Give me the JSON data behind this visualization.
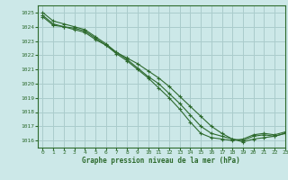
{
  "title": "",
  "xlabel": "Graphe pression niveau de la mer (hPa)",
  "ylabel": "",
  "background_color": "#cce8e8",
  "grid_color": "#aacccc",
  "line_color": "#2d6a2d",
  "xlim": [
    -0.5,
    23
  ],
  "ylim": [
    1015.5,
    1025.5
  ],
  "yticks": [
    1016,
    1017,
    1018,
    1019,
    1020,
    1021,
    1022,
    1023,
    1024,
    1025
  ],
  "xticks": [
    0,
    1,
    2,
    3,
    4,
    5,
    6,
    7,
    8,
    9,
    10,
    11,
    12,
    13,
    14,
    15,
    16,
    17,
    18,
    19,
    20,
    21,
    22,
    23
  ],
  "line1_x": [
    0,
    1,
    2,
    3,
    4,
    5,
    6,
    7,
    8,
    9,
    10,
    11,
    12,
    13,
    14,
    15,
    16,
    17,
    18,
    19,
    20,
    21,
    22,
    23
  ],
  "line1_y": [
    1025.0,
    1024.4,
    1024.2,
    1024.0,
    1023.8,
    1023.3,
    1022.8,
    1022.2,
    1021.7,
    1021.1,
    1020.5,
    1020.0,
    1019.3,
    1018.6,
    1017.8,
    1017.0,
    1016.5,
    1016.3,
    1016.1,
    1016.0,
    1016.3,
    1016.4,
    1016.3,
    1016.5
  ],
  "line2_x": [
    0,
    1,
    2,
    3,
    4,
    5,
    6,
    7,
    8,
    9,
    10,
    11,
    12,
    13,
    14,
    15,
    16,
    17,
    18,
    19,
    20,
    21,
    22,
    23
  ],
  "line2_y": [
    1024.8,
    1024.2,
    1024.0,
    1023.9,
    1023.7,
    1023.2,
    1022.7,
    1022.1,
    1021.6,
    1021.0,
    1020.4,
    1019.7,
    1019.0,
    1018.2,
    1017.3,
    1016.5,
    1016.2,
    1016.1,
    1016.0,
    1016.1,
    1016.4,
    1016.5,
    1016.4,
    1016.6
  ],
  "line3_x": [
    0,
    1,
    2,
    3,
    4,
    5,
    6,
    7,
    8,
    9,
    10,
    11,
    12,
    13,
    14,
    15,
    16,
    17,
    18,
    19,
    20,
    21,
    22,
    23
  ],
  "line3_y": [
    1024.7,
    1024.1,
    1024.0,
    1023.8,
    1023.6,
    1023.1,
    1022.7,
    1022.2,
    1021.8,
    1021.4,
    1020.9,
    1020.4,
    1019.8,
    1019.1,
    1018.4,
    1017.7,
    1017.0,
    1016.5,
    1016.1,
    1015.9,
    1016.1,
    1016.2,
    1016.3,
    1016.5
  ]
}
